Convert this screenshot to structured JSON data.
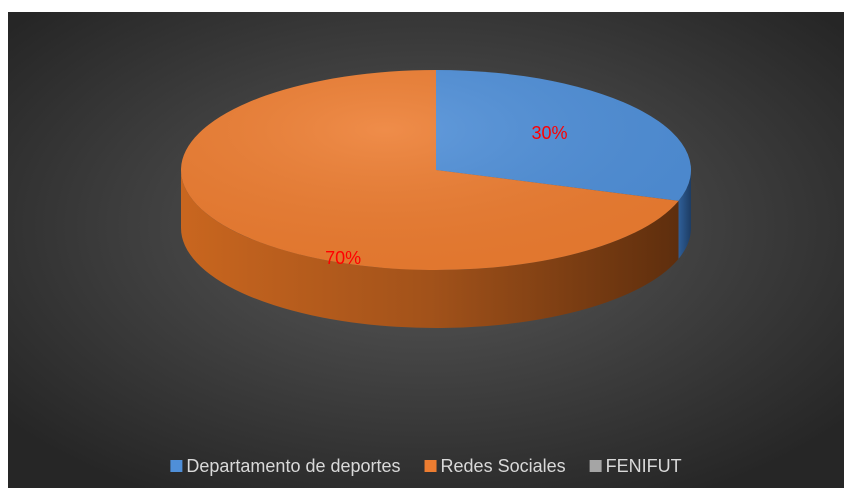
{
  "chart_data": {
    "type": "pie",
    "categories": [
      "Departamento de deportes",
      "Redes Sociales",
      "FENIFUT"
    ],
    "values": [
      30,
      70,
      0
    ],
    "value_labels": [
      "30%",
      "70%",
      null
    ],
    "colors": [
      "#4f8fd8",
      "#ed7d31",
      "#a5a5a5"
    ],
    "legend": "bottom"
  }
}
